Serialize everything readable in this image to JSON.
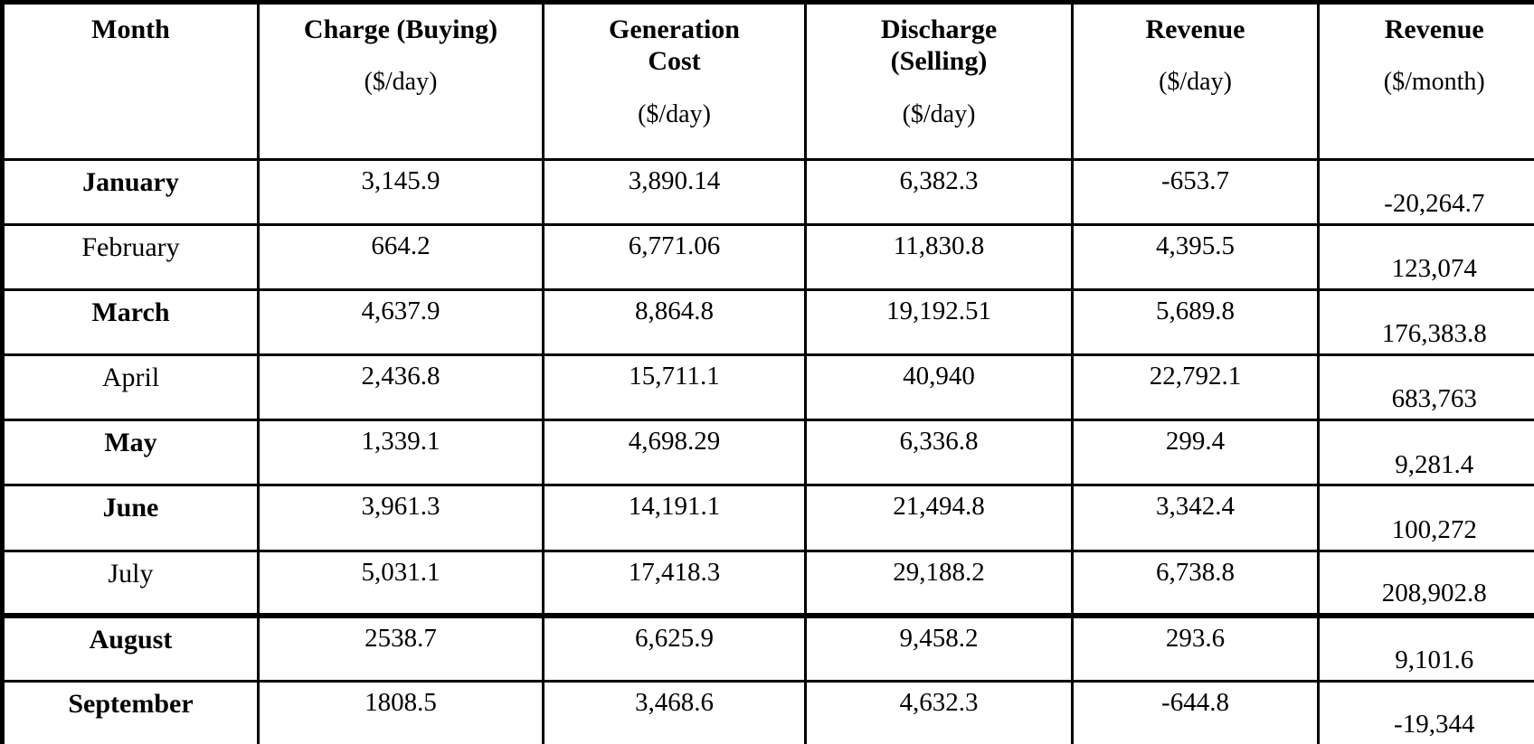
{
  "table": {
    "name": "monthly-revenue-table",
    "columns": [
      {
        "title": "Month",
        "unit": ""
      },
      {
        "title": "Charge (Buying)",
        "unit": "($/day)"
      },
      {
        "title": "Generation Cost",
        "unit": "($/day)"
      },
      {
        "title": "Discharge (Selling)",
        "unit": "($/day)"
      },
      {
        "title": "Revenue",
        "unit": "($/day)"
      },
      {
        "title": "Revenue",
        "unit": "($/month)"
      }
    ],
    "rows": [
      {
        "month": "January",
        "bold": true,
        "charge": "3,145.9",
        "generation": "3,890.14",
        "discharge": "6,382.3",
        "revenue_day": "-653.7",
        "revenue_month": "-20,264.7"
      },
      {
        "month": "February",
        "bold": false,
        "charge": "664.2",
        "generation": "6,771.06",
        "discharge": "11,830.8",
        "revenue_day": "4,395.5",
        "revenue_month": "123,074"
      },
      {
        "month": "March",
        "bold": true,
        "charge": "4,637.9",
        "generation": "8,864.8",
        "discharge": "19,192.51",
        "revenue_day": "5,689.8",
        "revenue_month": "176,383.8"
      },
      {
        "month": "April",
        "bold": false,
        "charge": "2,436.8",
        "generation": "15,711.1",
        "discharge": "40,940",
        "revenue_day": "22,792.1",
        "revenue_month": "683,763"
      },
      {
        "month": "May",
        "bold": true,
        "charge": "1,339.1",
        "generation": "4,698.29",
        "discharge": "6,336.8",
        "revenue_day": "299.4",
        "revenue_month": "9,281.4"
      },
      {
        "month": "June",
        "bold": true,
        "charge": "3,961.3",
        "generation": "14,191.1",
        "discharge": "21,494.8",
        "revenue_day": "3,342.4",
        "revenue_month": "100,272"
      },
      {
        "month": "July",
        "bold": false,
        "charge": "5,031.1",
        "generation": "17,418.3",
        "discharge": "29,188.2",
        "revenue_day": "6,738.8",
        "revenue_month": "208,902.8"
      },
      {
        "month": "August",
        "bold": true,
        "charge": "2538.7",
        "generation": "6,625.9",
        "discharge": "9,458.2",
        "revenue_day": "293.6",
        "revenue_month": "9,101.6"
      },
      {
        "month": "September",
        "bold": true,
        "charge": "1808.5",
        "generation": "3,468.6",
        "discharge": "4,632.3",
        "revenue_day": "-644.8",
        "revenue_month": "-19,344"
      }
    ],
    "colors": {
      "border": "#000000",
      "text": "#000000",
      "background": "#ffffff"
    }
  }
}
